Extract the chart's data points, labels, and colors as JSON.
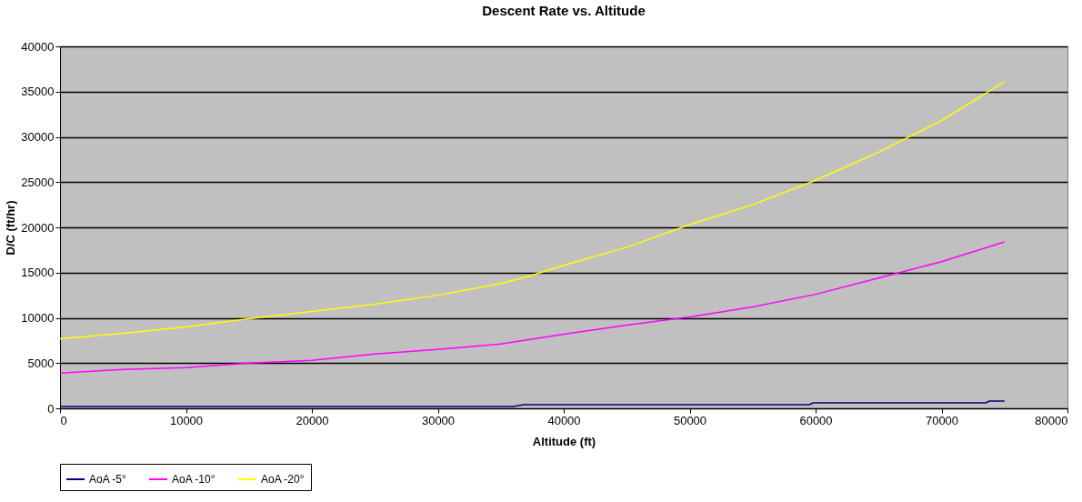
{
  "chart_data": {
    "type": "line",
    "title": "Descent Rate vs. Altitude",
    "xlabel": "Altitude (ft)",
    "ylabel": "D/C (ft/hr)",
    "xlim": [
      0,
      80000
    ],
    "xticks": [
      0,
      10000,
      20000,
      30000,
      40000,
      50000,
      60000,
      70000,
      80000
    ],
    "ylim": [
      0,
      40000
    ],
    "yticks": [
      0,
      5000,
      10000,
      15000,
      20000,
      25000,
      30000,
      35000,
      40000
    ],
    "grid": "y",
    "legend": "bottom",
    "marker": "none",
    "line_style": "solid",
    "series": [
      {
        "name": "AoA -5°",
        "color": "#000080",
        "x": [
          0,
          10000,
          20000,
          30000,
          36000,
          36800,
          45000,
          55000,
          59500,
          59800,
          65000,
          73500,
          73800,
          75000
        ],
        "values": [
          200,
          200,
          200,
          200,
          200,
          400,
          400,
          400,
          400,
          600,
          600,
          600,
          800,
          800
        ]
      },
      {
        "name": "AoA -10°",
        "color": "#ff00ff",
        "x": [
          0,
          5000,
          10000,
          15000,
          20000,
          25000,
          30000,
          35000,
          40000,
          45000,
          50000,
          55000,
          60000,
          65000,
          70000,
          75000
        ],
        "values": [
          3900,
          4300,
          4500,
          5000,
          5300,
          6000,
          6500,
          7100,
          8200,
          9200,
          10100,
          11200,
          12600,
          14400,
          16200,
          18400
        ]
      },
      {
        "name": "AoA -20°",
        "color": "#ffff00",
        "x": [
          0,
          5000,
          10000,
          15000,
          20000,
          25000,
          30000,
          35000,
          37000,
          40000,
          45000,
          50000,
          55000,
          60000,
          65000,
          70000,
          75000
        ],
        "values": [
          7700,
          8300,
          9000,
          9900,
          10700,
          11500,
          12500,
          13800,
          14500,
          15800,
          17800,
          20300,
          22500,
          25200,
          28300,
          31800,
          36100
        ]
      }
    ]
  }
}
